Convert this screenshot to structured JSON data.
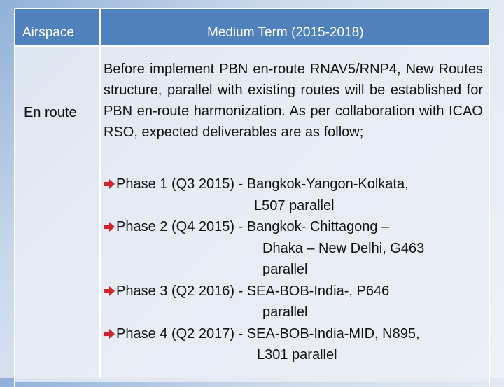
{
  "table": {
    "header": [
      "Airspace",
      "Medium Term (2015-2018)"
    ],
    "rows": [
      {
        "airspace": "En route",
        "paragraph": "Before implement PBN en-route RNAV5/RNP4, New Routes structure, parallel with existing routes will be established for PBN en-route harmonization. As per collaboration with ICAO RSO, expected deliverables are as follow;",
        "bullets": [
          {
            "lines": [
              "Phase 1 (Q3 2015) - Bangkok-Yangon-Kolkata,",
              "L507 parallel"
            ]
          },
          {
            "lines": [
              "Phase 2 (Q4 2015) - Bangkok- Chittagong –",
              "Dhaka – New Delhi, G463",
              "parallel"
            ]
          },
          {
            "lines": [
              "Phase 3 (Q2 2016) - SEA-BOB-India-, P646",
              "parallel"
            ]
          },
          {
            "lines": [
              "Phase 4 (Q2 2017) - SEA-BOB-India-MID, N895,",
              "L301 parallel"
            ]
          }
        ]
      }
    ]
  }
}
